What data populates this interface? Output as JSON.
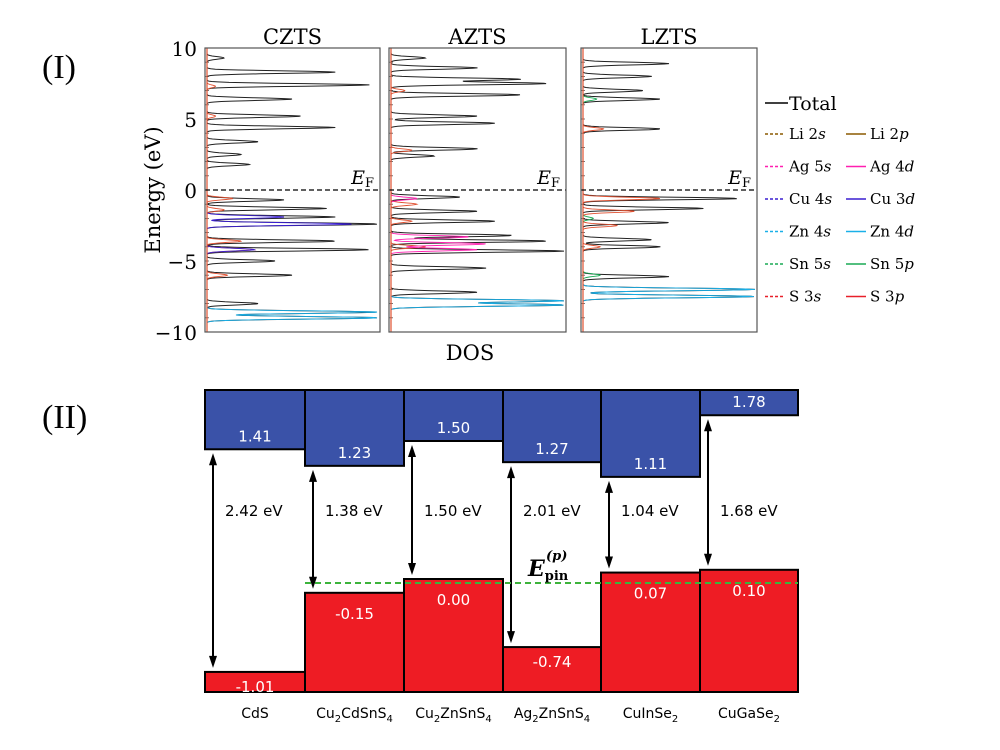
{
  "panel_labels": [
    "(I)",
    "(II)"
  ],
  "chart_data": [
    {
      "type": "line",
      "ylabel": "Energy (eV)",
      "xlabel": "DOS",
      "ylim": [
        -10,
        10
      ],
      "yticks": [
        10,
        5,
        0,
        -5,
        -10
      ],
      "ytick_labels": [
        "10",
        "5",
        "0",
        "−5",
        "−10"
      ],
      "fermi_label": "E",
      "fermi_sub": "F",
      "fermi_energy": 0,
      "legend_placement": "right",
      "legend": [
        {
          "name": "Total",
          "color": "#000000",
          "dash": false
        },
        {
          "name": "Li 2s",
          "color": "#8b5a00",
          "dash": true
        },
        {
          "name": "Li 2p",
          "color": "#8b5a00",
          "dash": false
        },
        {
          "name": "Ag 5s",
          "color": "#ff1fb0",
          "dash": true
        },
        {
          "name": "Ag 4d",
          "color": "#ff1fb0",
          "dash": false
        },
        {
          "name": "Cu 4s",
          "color": "#3a1fd0",
          "dash": true
        },
        {
          "name": "Cu 3d",
          "color": "#3a1fd0",
          "dash": false
        },
        {
          "name": "Zn 4s",
          "color": "#1ab0e8",
          "dash": true
        },
        {
          "name": "Zn 4d",
          "color": "#1ab0e8",
          "dash": false
        },
        {
          "name": "Sn 5s",
          "color": "#1aaa55",
          "dash": true
        },
        {
          "name": "Sn 5p",
          "color": "#1aaa55",
          "dash": false
        },
        {
          "name": "S 3s",
          "color": "#e8202a",
          "dash": true
        },
        {
          "name": "S 3p",
          "color": "#e8202a",
          "dash": false
        }
      ],
      "panels": [
        {
          "title": "CZTS",
          "series": [
            {
              "name": "Total",
              "color": "#222222",
              "peaks": [
                [
                  9.3,
                  0.1
                ],
                [
                  8.3,
                  0.75
                ],
                [
                  7.4,
                  0.95
                ],
                [
                  6.4,
                  0.5
                ],
                [
                  5.2,
                  0.55
                ],
                [
                  4.4,
                  0.75
                ],
                [
                  3.4,
                  0.3
                ],
                [
                  2.5,
                  0.2
                ],
                [
                  1.8,
                  0.25
                ],
                [
                  -0.7,
                  0.45
                ],
                [
                  -1.3,
                  0.7
                ],
                [
                  -1.9,
                  0.75
                ],
                [
                  -2.4,
                  1.0
                ],
                [
                  -3.6,
                  0.75
                ],
                [
                  -4.2,
                  0.95
                ],
                [
                  -5.0,
                  0.4
                ],
                [
                  -6.0,
                  0.5
                ],
                [
                  -8.0,
                  0.3
                ],
                [
                  -8.6,
                  1.0
                ],
                [
                  -9.0,
                  1.0
                ]
              ]
            },
            {
              "name": "S 3p",
              "color": "#e05030",
              "peaks": [
                [
                  -0.6,
                  0.15
                ],
                [
                  -1.4,
                  0.1
                ],
                [
                  -3.6,
                  0.2
                ],
                [
                  -4.2,
                  0.28
                ],
                [
                  -6.0,
                  0.12
                ],
                [
                  7.3,
                  0.05
                ],
                [
                  5.2,
                  0.05
                ]
              ]
            },
            {
              "name": "Cu 3d",
              "color": "#3a1fd0",
              "peaks": [
                [
                  -1.9,
                  0.45
                ],
                [
                  -2.4,
                  0.85
                ],
                [
                  -4.2,
                  0.28
                ]
              ]
            },
            {
              "name": "Zn 4d",
              "color": "#1ab0e8",
              "peaks": [
                [
                  -8.6,
                  1.0
                ],
                [
                  -9.0,
                  1.0
                ]
              ]
            }
          ]
        },
        {
          "title": "AZTS",
          "series": [
            {
              "name": "Total",
              "color": "#222222",
              "peaks": [
                [
                  9.3,
                  0.2
                ],
                [
                  8.6,
                  0.5
                ],
                [
                  7.8,
                  0.75
                ],
                [
                  7.5,
                  0.9
                ],
                [
                  6.7,
                  0.75
                ],
                [
                  5.2,
                  0.5
                ],
                [
                  4.7,
                  0.6
                ],
                [
                  2.9,
                  0.5
                ],
                [
                  2.4,
                  0.25
                ],
                [
                  -0.5,
                  0.4
                ],
                [
                  -1.5,
                  0.5
                ],
                [
                  -2.2,
                  0.6
                ],
                [
                  -3.2,
                  0.7
                ],
                [
                  -3.6,
                  0.9
                ],
                [
                  -4.3,
                  1.0
                ],
                [
                  -5.5,
                  0.55
                ],
                [
                  -7.2,
                  0.5
                ],
                [
                  -7.8,
                  1.0
                ],
                [
                  -8.1,
                  1.0
                ]
              ]
            },
            {
              "name": "S 3p",
              "color": "#e05030",
              "peaks": [
                [
                  -1.0,
                  0.15
                ],
                [
                  -2.2,
                  0.12
                ],
                [
                  -4.0,
                  0.2
                ],
                [
                  2.8,
                  0.12
                ],
                [
                  7.0,
                  0.08
                ]
              ]
            },
            {
              "name": "Ag 4d",
              "color": "#ff1fb0",
              "peaks": [
                [
                  -3.3,
                  0.45
                ],
                [
                  -3.8,
                  0.55
                ],
                [
                  -4.2,
                  0.5
                ],
                [
                  -0.6,
                  0.15
                ]
              ]
            },
            {
              "name": "Zn 4d",
              "color": "#1ab0e8",
              "peaks": [
                [
                  -7.8,
                  1.0
                ],
                [
                  -8.1,
                  1.0
                ]
              ]
            }
          ]
        },
        {
          "title": "LZTS",
          "series": [
            {
              "name": "Total",
              "color": "#222222",
              "peaks": [
                [
                  8.9,
                  0.5
                ],
                [
                  8.0,
                  0.4
                ],
                [
                  7.0,
                  0.35
                ],
                [
                  6.4,
                  0.45
                ],
                [
                  4.3,
                  0.45
                ],
                [
                  -0.6,
                  0.9
                ],
                [
                  -1.3,
                  0.7
                ],
                [
                  -2.3,
                  0.5
                ],
                [
                  -3.5,
                  0.4
                ],
                [
                  -4.0,
                  0.45
                ],
                [
                  -6.1,
                  0.5
                ],
                [
                  -7.0,
                  1.0
                ],
                [
                  -7.5,
                  1.0
                ]
              ]
            },
            {
              "name": "S 3p",
              "color": "#e05030",
              "peaks": [
                [
                  -0.6,
                  0.45
                ],
                [
                  -1.5,
                  0.3
                ],
                [
                  -2.5,
                  0.2
                ],
                [
                  4.3,
                  0.12
                ],
                [
                  -4.0,
                  0.1
                ]
              ]
            },
            {
              "name": "Sn 5p",
              "color": "#1aaa55",
              "peaks": [
                [
                  6.4,
                  0.08
                ],
                [
                  -2.0,
                  0.06
                ],
                [
                  -6.0,
                  0.1
                ]
              ]
            },
            {
              "name": "Zn 4d",
              "color": "#1ab0e8",
              "peaks": [
                [
                  -7.0,
                  1.0
                ],
                [
                  -7.5,
                  1.0
                ]
              ]
            }
          ]
        }
      ]
    },
    {
      "type": "bar",
      "categories": [
        "CdS",
        "Cu2CdSnS4",
        "Cu2ZnSnS4",
        "Ag2ZnSnS4",
        "CuInSe2",
        "CuGaSe2"
      ],
      "cbm": [
        1.41,
        1.23,
        1.5,
        1.27,
        1.11,
        1.78
      ],
      "cbm_labels": [
        "1.41",
        "1.23",
        "1.50",
        "1.27",
        "1.11",
        "1.78"
      ],
      "vbm": [
        -1.01,
        -0.15,
        0.0,
        -0.74,
        0.07,
        0.1
      ],
      "vbm_labels": [
        "-1.01",
        "-0.15",
        "0.00",
        "-0.74",
        "0.07",
        "0.10"
      ],
      "gap_labels": [
        "2.42 eV",
        "1.38 eV",
        "1.50 eV",
        "2.01 eV",
        "1.04 eV",
        "1.68 eV"
      ],
      "pinning_level": 0,
      "pinning_label": {
        "main": "E",
        "sub": "pin",
        "sup": "(p)"
      },
      "colors": {
        "conduction": "#3a52a8",
        "valence": "#ee1c24",
        "pinning": "#3cb43c"
      }
    }
  ]
}
